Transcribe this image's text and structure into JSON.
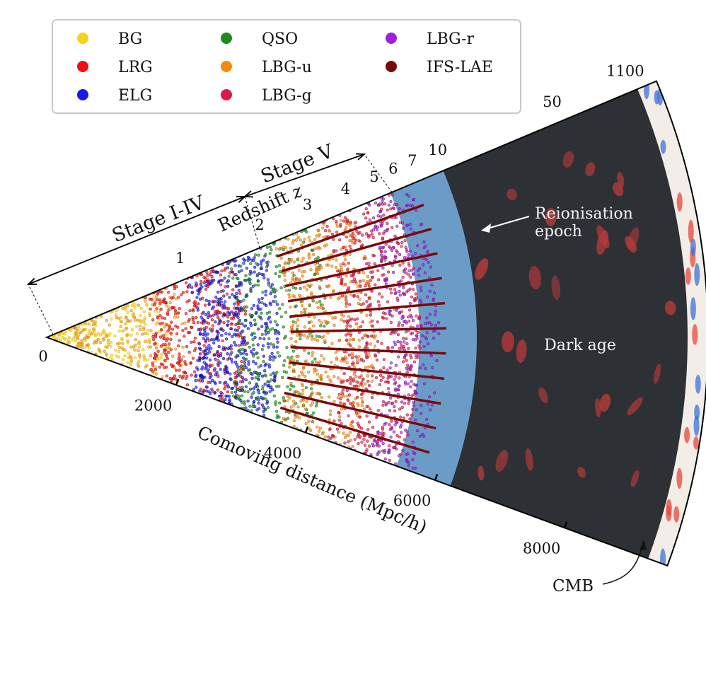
{
  "legend": {
    "items": [
      {
        "label": "BG",
        "color": "#f7d21b"
      },
      {
        "label": "LRG",
        "color": "#ee1111"
      },
      {
        "label": "ELG",
        "color": "#1a1ae6"
      },
      {
        "label": "QSO",
        "color": "#1d8a1d"
      },
      {
        "label": "LBG-u",
        "color": "#f78a0c"
      },
      {
        "label": "LBG-g",
        "color": "#dd1b45"
      },
      {
        "label": "LBG-r",
        "color": "#9b22d6"
      },
      {
        "label": "IFS-LAE",
        "color": "#7a0a0a"
      }
    ]
  },
  "stages": {
    "stage_early": "Stage I-IV",
    "stage_next": "Stage V"
  },
  "redshift": {
    "axis_label": "Redshift",
    "axis_symbol": "z",
    "ticks": [
      {
        "label": "1",
        "distance": 2300
      },
      {
        "label": "2",
        "distance": 3550
      },
      {
        "label": "3",
        "distance": 4300
      },
      {
        "label": "4",
        "distance": 4900
      },
      {
        "label": "5",
        "distance": 5350
      },
      {
        "label": "6",
        "distance": 5650
      },
      {
        "label": "7",
        "distance": 5950
      },
      {
        "label": "10",
        "distance": 6350
      },
      {
        "label": "50",
        "distance": 8150
      },
      {
        "label": "1100",
        "distance": 9300
      }
    ]
  },
  "distance_axis": {
    "label": "Comoving distance (Mpc/h)",
    "ticks": [
      {
        "label": "0",
        "value": 0
      },
      {
        "label": "2000",
        "value": 2000
      },
      {
        "label": "4000",
        "value": 4000
      },
      {
        "label": "6000",
        "value": 6000
      },
      {
        "label": "8000",
        "value": 8000
      }
    ]
  },
  "regions": {
    "reionisation_line1": "Reionisation",
    "reionisation_line2": "epoch",
    "dark_age": "Dark age",
    "cmb": "CMB"
  },
  "colors": {
    "reionisation_band": "#6b9cc8",
    "dark_age_bg": "#2d3035",
    "cmb_warm": "#e9463a",
    "cmb_cool": "#3f72d8"
  }
}
